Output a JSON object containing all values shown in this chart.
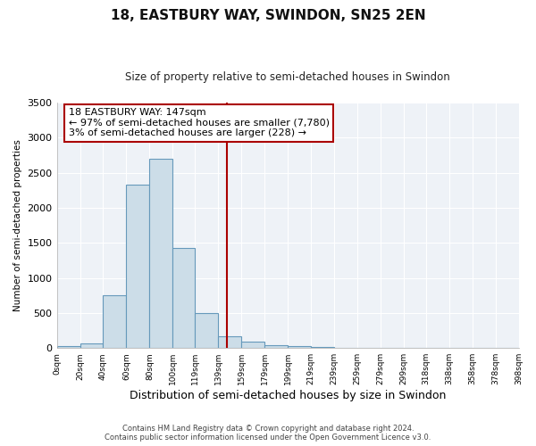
{
  "title": "18, EASTBURY WAY, SWINDON, SN25 2EN",
  "subtitle": "Size of property relative to semi-detached houses in Swindon",
  "xlabel": "Distribution of semi-detached houses by size in Swindon",
  "ylabel": "Number of semi-detached properties",
  "bar_left_edges": [
    0,
    20,
    40,
    60,
    80,
    100,
    119,
    139,
    159,
    179,
    199,
    219,
    239,
    259,
    279,
    299,
    318,
    338,
    358,
    378
  ],
  "bar_widths": [
    20,
    20,
    20,
    20,
    20,
    19,
    20,
    20,
    20,
    20,
    20,
    20,
    20,
    20,
    20,
    19,
    20,
    20,
    20,
    20
  ],
  "bar_heights": [
    30,
    70,
    750,
    2330,
    2700,
    1430,
    500,
    170,
    90,
    40,
    25,
    10,
    5,
    0,
    0,
    0,
    0,
    0,
    0,
    0
  ],
  "bar_color": "#ccdde8",
  "bar_edge_color": "#6699bb",
  "property_size": 147,
  "vline_color": "#aa0000",
  "annotation_line1": "18 EASTBURY WAY: 147sqm",
  "annotation_line2": "← 97% of semi-detached houses are smaller (7,780)",
  "annotation_line3": "3% of semi-detached houses are larger (228) →",
  "annotation_box_facecolor": "#ffffff",
  "annotation_box_edgecolor": "#aa0000",
  "ylim": [
    0,
    3500
  ],
  "xlim": [
    0,
    398
  ],
  "yticks": [
    0,
    500,
    1000,
    1500,
    2000,
    2500,
    3000,
    3500
  ],
  "xtick_labels": [
    "0sqm",
    "20sqm",
    "40sqm",
    "60sqm",
    "80sqm",
    "100sqm",
    "119sqm",
    "139sqm",
    "159sqm",
    "179sqm",
    "199sqm",
    "219sqm",
    "239sqm",
    "259sqm",
    "279sqm",
    "299sqm",
    "318sqm",
    "338sqm",
    "358sqm",
    "378sqm",
    "398sqm"
  ],
  "xtick_positions": [
    0,
    20,
    40,
    60,
    80,
    100,
    119,
    139,
    159,
    179,
    199,
    219,
    239,
    259,
    279,
    299,
    318,
    338,
    358,
    378,
    398
  ],
  "footer_line1": "Contains HM Land Registry data © Crown copyright and database right 2024.",
  "footer_line2": "Contains public sector information licensed under the Open Government Licence v3.0.",
  "background_color": "#ffffff",
  "plot_bg_color": "#eef2f7",
  "grid_color": "#ffffff"
}
